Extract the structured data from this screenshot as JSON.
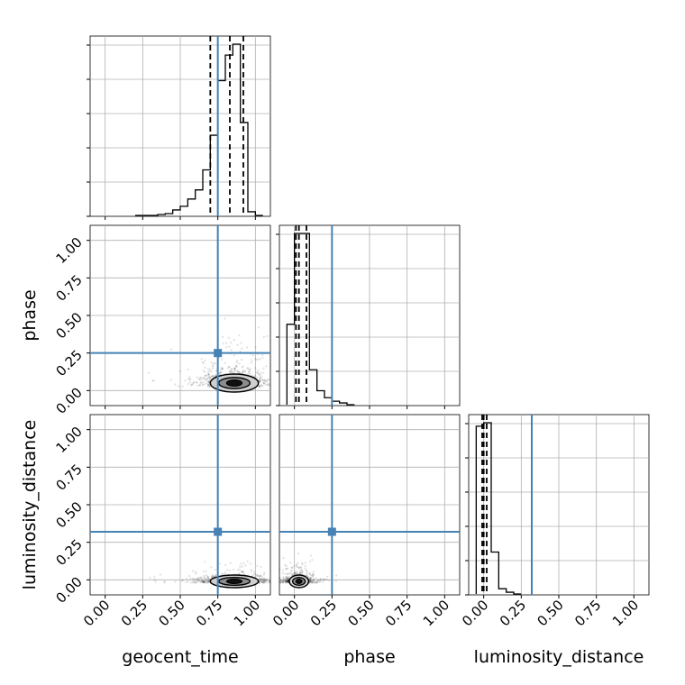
{
  "chart_data": {
    "type": "corner",
    "parameters": [
      "geocent_time",
      "phase",
      "luminosity_distance"
    ],
    "axis_range": [
      -0.1,
      1.1
    ],
    "tick_values": [
      0.0,
      0.25,
      0.5,
      0.75,
      1.0
    ],
    "tick_labels": [
      "0.00",
      "0.25",
      "0.50",
      "0.75",
      "1.00"
    ],
    "grid": true,
    "truths": {
      "geocent_time": 0.75,
      "phase": 0.25,
      "luminosity_distance": 0.32
    },
    "truth_color": "#4682b4",
    "line_color": "#000000",
    "histograms": {
      "geocent_time": {
        "bin_edges": [
          0.2,
          0.25,
          0.3,
          0.35,
          0.4,
          0.45,
          0.5,
          0.55,
          0.6,
          0.65,
          0.7,
          0.75,
          0.8,
          0.85,
          0.9,
          0.95,
          1.0,
          1.05
        ],
        "counts": [
          0.0,
          0.0,
          0.0,
          0.005,
          0.01,
          0.03,
          0.05,
          0.09,
          0.14,
          0.25,
          0.44,
          0.74,
          0.88,
          0.94,
          0.51,
          0.02,
          0.0
        ],
        "quantiles": [
          0.7,
          0.83,
          0.92
        ]
      },
      "phase": {
        "bin_edges": [
          -0.05,
          0.0,
          0.05,
          0.1,
          0.15,
          0.2,
          0.25,
          0.3,
          0.35,
          0.4
        ],
        "counts": [
          0.46,
          0.98,
          0.98,
          0.2,
          0.08,
          0.04,
          0.02,
          0.01,
          0.0
        ],
        "quantiles": [
          0.01,
          0.03,
          0.08
        ]
      },
      "luminosity_distance": {
        "bin_edges": [
          -0.05,
          0.0,
          0.05,
          0.1,
          0.15,
          0.2,
          0.25
        ],
        "counts": [
          0.96,
          0.98,
          0.24,
          0.03,
          0.01,
          0.0
        ],
        "quantiles": [
          -0.01,
          0.0,
          0.02
        ]
      }
    },
    "joint_panels": [
      {
        "x": "geocent_time",
        "y": "phase",
        "center": [
          0.86,
          0.05
        ],
        "spread": [
          0.1,
          0.05
        ]
      },
      {
        "x": "geocent_time",
        "y": "luminosity_distance",
        "center": [
          0.86,
          -0.01
        ],
        "spread": [
          0.1,
          0.02
        ]
      },
      {
        "x": "phase",
        "y": "luminosity_distance",
        "center": [
          0.03,
          -0.01
        ],
        "spread": [
          0.04,
          0.02
        ]
      }
    ]
  }
}
